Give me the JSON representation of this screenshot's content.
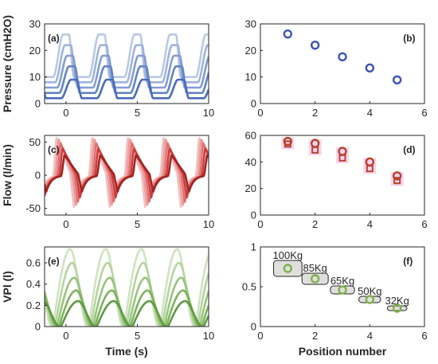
{
  "chart_data": [
    {
      "id": "a",
      "panel_label": "(a)",
      "type": "line",
      "xlabel": "",
      "ylabel": "Pressure (cmH2O)",
      "xlim": [
        -1.5,
        10
      ],
      "ylim": [
        0,
        30
      ],
      "xticks": [
        0,
        5,
        10
      ],
      "yticks": [
        0,
        10,
        20,
        30
      ],
      "period_s": 2.5,
      "peak_values": [
        26,
        22,
        18,
        14,
        9
      ],
      "baseline_values": [
        10,
        8,
        6,
        4,
        2
      ],
      "colors": [
        "#b9c8e6",
        "#9fb3dd",
        "#839cd2",
        "#6584c6",
        "#4a6cbb"
      ],
      "signal": "pressure"
    },
    {
      "id": "b",
      "panel_label": "(b)",
      "type": "scatter",
      "xlabel": "",
      "ylabel": "",
      "xlim": [
        0,
        6
      ],
      "ylim": [
        0,
        30
      ],
      "xticks": [
        0,
        2,
        4,
        6
      ],
      "yticks": [
        0,
        10,
        20,
        30
      ],
      "series": [
        {
          "marker": "circle",
          "color": "#3d54b5",
          "x": [
            1,
            2,
            3,
            4,
            5
          ],
          "y": [
            26.2,
            22.0,
            17.6,
            13.4,
            8.9
          ]
        }
      ]
    },
    {
      "id": "c",
      "panel_label": "(c)",
      "type": "line",
      "xlabel": "",
      "ylabel": "Flow (l/min)",
      "xlim": [
        -1.5,
        10
      ],
      "ylim": [
        -60,
        60
      ],
      "xticks": [
        0,
        5,
        10
      ],
      "yticks": [
        -50,
        0,
        50
      ],
      "period_s": 2.5,
      "peak_values": [
        56,
        54,
        48,
        40,
        30
      ],
      "colors": [
        "#f2c1c1",
        "#eb9c9c",
        "#e07070",
        "#cc3c3c",
        "#a02424"
      ],
      "signal": "flow"
    },
    {
      "id": "d",
      "panel_label": "(d)",
      "type": "scatter",
      "xlabel": "",
      "ylabel": "",
      "xlim": [
        0,
        6
      ],
      "ylim": [
        0,
        60
      ],
      "xticks": [
        0,
        2,
        4,
        6
      ],
      "yticks": [
        0,
        20,
        40,
        60
      ],
      "series": [
        {
          "marker": "circle",
          "color": "#b5442a",
          "x": [
            1,
            2,
            3,
            4,
            5
          ],
          "y": [
            55.5,
            54.0,
            48.0,
            40.0,
            29.5
          ]
        },
        {
          "marker": "square",
          "color": "#b5442a",
          "x": [
            1,
            2,
            3,
            4,
            5
          ],
          "y": [
            53.5,
            49.0,
            43.0,
            35.0,
            26.0
          ]
        }
      ],
      "errorbar_color": "#f6d3ef"
    },
    {
      "id": "e",
      "panel_label": "(e)",
      "type": "line",
      "xlabel": "Time (s)",
      "ylabel": "VPl (l)",
      "xlim": [
        -1.5,
        10
      ],
      "ylim": [
        0,
        0.75
      ],
      "xticks": [
        0,
        5,
        10
      ],
      "yticks": [
        0,
        0.2,
        0.4,
        0.6
      ],
      "period_s": 2.5,
      "peak_values": [
        0.73,
        0.6,
        0.46,
        0.34,
        0.24
      ],
      "colors": [
        "#cfe3bf",
        "#b5d49f",
        "#98c47d",
        "#7db35e",
        "#5f9a41"
      ],
      "signal": "volume"
    },
    {
      "id": "f",
      "panel_label": "(f)",
      "type": "scatter",
      "xlabel": "Position number",
      "ylabel": "",
      "xlim": [
        0,
        6
      ],
      "ylim": [
        0,
        1
      ],
      "xticks": [
        0,
        2,
        4,
        6
      ],
      "yticks": [
        0,
        0.5,
        1
      ],
      "series": [
        {
          "marker": "circle",
          "color": "#7fb04a",
          "x": [
            1,
            2,
            3,
            4,
            5
          ],
          "y": [
            0.73,
            0.6,
            0.46,
            0.34,
            0.23
          ]
        }
      ],
      "box_fill": "#dfe0de",
      "box_heights": [
        0.2,
        0.14,
        0.1,
        0.08,
        0.06
      ],
      "annotations": [
        "100Kg",
        "85Kg",
        "65Kg",
        "50Kg",
        "32Kg"
      ]
    }
  ]
}
